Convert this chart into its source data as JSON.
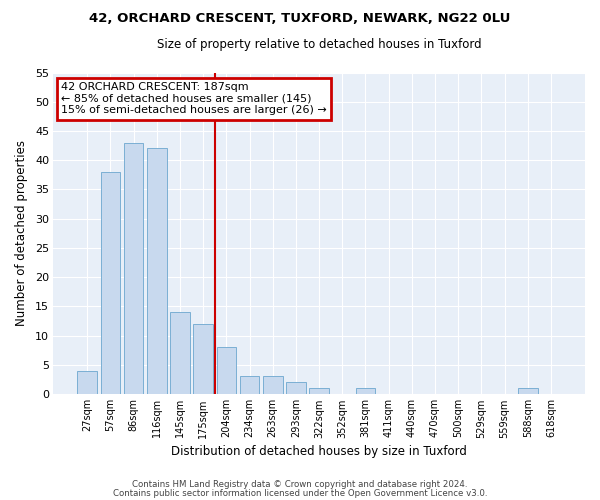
{
  "title": "42, ORCHARD CRESCENT, TUXFORD, NEWARK, NG22 0LU",
  "subtitle": "Size of property relative to detached houses in Tuxford",
  "xlabel": "Distribution of detached houses by size in Tuxford",
  "ylabel": "Number of detached properties",
  "bar_color": "#c8d9ee",
  "bar_edge_color": "#7bafd4",
  "bg_color": "#e8eff8",
  "grid_color": "#ffffff",
  "fig_bg_color": "#ffffff",
  "categories": [
    "27sqm",
    "57sqm",
    "86sqm",
    "116sqm",
    "145sqm",
    "175sqm",
    "204sqm",
    "234sqm",
    "263sqm",
    "293sqm",
    "322sqm",
    "352sqm",
    "381sqm",
    "411sqm",
    "440sqm",
    "470sqm",
    "500sqm",
    "529sqm",
    "559sqm",
    "588sqm",
    "618sqm"
  ],
  "values": [
    4,
    38,
    43,
    42,
    14,
    12,
    8,
    3,
    3,
    2,
    1,
    0,
    1,
    0,
    0,
    0,
    0,
    0,
    0,
    1,
    0
  ],
  "ylim": [
    0,
    55
  ],
  "yticks": [
    0,
    5,
    10,
    15,
    20,
    25,
    30,
    35,
    40,
    45,
    50,
    55
  ],
  "vline_x": 5.5,
  "vline_color": "#cc0000",
  "annotation_title": "42 ORCHARD CRESCENT: 187sqm",
  "annotation_line1": "← 85% of detached houses are smaller (145)",
  "annotation_line2": "15% of semi-detached houses are larger (26) →",
  "annotation_box_color": "#cc0000",
  "footer_line1": "Contains HM Land Registry data © Crown copyright and database right 2024.",
  "footer_line2": "Contains public sector information licensed under the Open Government Licence v3.0."
}
